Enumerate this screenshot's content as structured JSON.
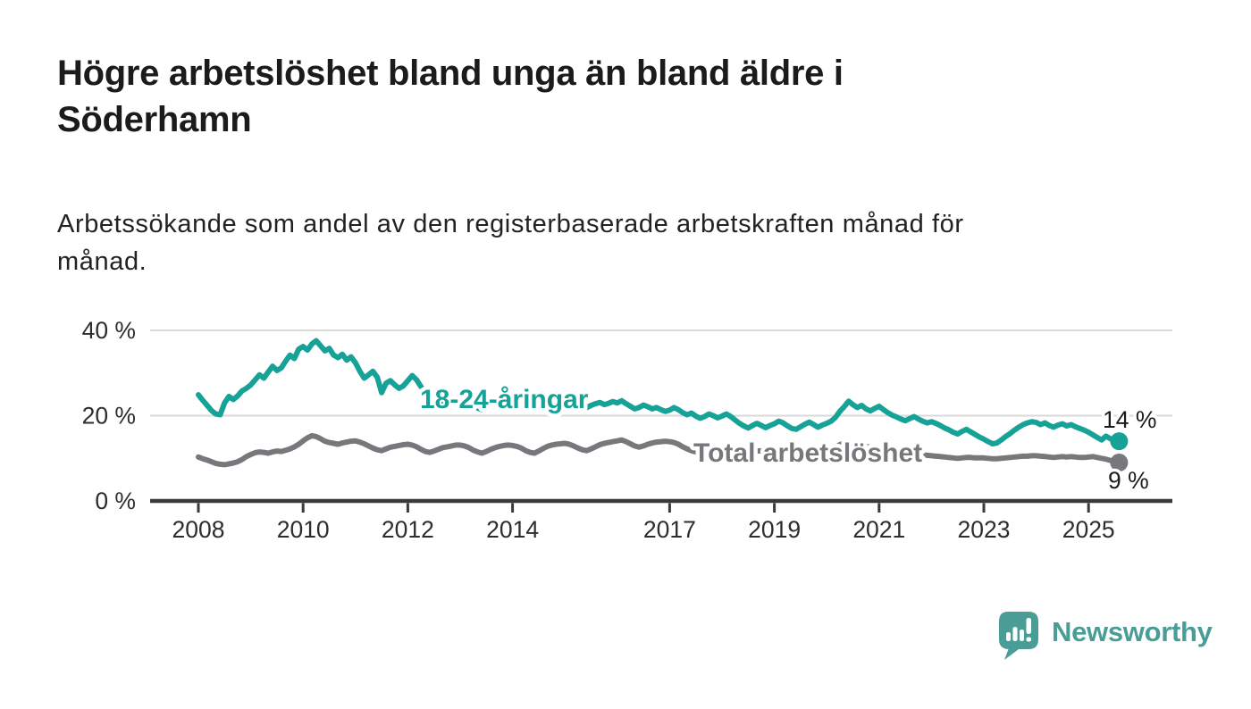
{
  "header": {
    "title": "Högre arbetslöshet bland unga än bland äldre i Söderhamn",
    "title_lines": [
      "Högre arbetslöshet bland unga än bland äldre i",
      "Söderhamn"
    ],
    "subtitle": "Arbetssökande som andel av den registerbaserade arbetskraften månad för månad.",
    "subtitle_lines": [
      "Arbetssökande som andel av den registerbaserade arbetskraften månad för",
      "månad."
    ]
  },
  "footer": {
    "brand": "Newsworthy",
    "brand_color": "#4a9d96"
  },
  "chart_data": {
    "type": "line",
    "title": "Högre arbetslöshet bland unga än bland äldre i Söderhamn",
    "subtitle": "Arbetssökande som andel av den registerbaserade arbetskraften månad för månad.",
    "xlabel": "",
    "ylabel": "",
    "frequency": "monthly",
    "start_year": 2008,
    "start_month": 1,
    "end_year": 2025,
    "end_month": 8,
    "x_ticks": [
      2008,
      2010,
      2012,
      2014,
      2017,
      2019,
      2021,
      2023,
      2025
    ],
    "y_ticks": [
      {
        "value": 0,
        "label": "0 %"
      },
      {
        "value": 20,
        "label": "20 %"
      },
      {
        "value": 40,
        "label": "40 %"
      }
    ],
    "ylim": [
      0,
      42
    ],
    "grid": "horizontal",
    "legend": "inline-labels",
    "axis_color": "#3a3a3a",
    "grid_color": "#d9d9d9",
    "tick_label_color": "#2d2d2d",
    "end_label_color": "#1a1a1a",
    "series": [
      {
        "name": "18-24-åringar",
        "color": "#16a296",
        "end_label": "14 %",
        "end_value": 14,
        "values": [
          24.9,
          23.6,
          22.4,
          21.2,
          20.4,
          20.2,
          23.0,
          24.5,
          23.8,
          24.6,
          25.8,
          26.4,
          27.2,
          28.4,
          29.6,
          28.8,
          30.2,
          31.6,
          30.6,
          31.2,
          32.8,
          34.2,
          33.4,
          35.6,
          36.2,
          35.4,
          36.8,
          37.6,
          36.4,
          35.2,
          35.8,
          34.2,
          33.6,
          34.4,
          33.0,
          33.8,
          32.4,
          30.4,
          28.8,
          29.6,
          30.4,
          29.0,
          25.4,
          27.6,
          28.2,
          27.2,
          26.4,
          27.0,
          28.2,
          29.4,
          28.4,
          26.8,
          25.6,
          21.8,
          22.6,
          23.8,
          22.8,
          23.4,
          24.2,
          23.6,
          23.2,
          24.0,
          23.4,
          22.6,
          21.8,
          21.4,
          22.2,
          23.0,
          23.6,
          23.2,
          23.9,
          24.3,
          24.0,
          24.5,
          23.8,
          23.0,
          22.4,
          21.9,
          22.6,
          23.3,
          23.8,
          24.1,
          24.4,
          24.0,
          23.6,
          24.2,
          23.7,
          22.9,
          22.3,
          21.9,
          22.4,
          22.8,
          23.1,
          22.6,
          22.9,
          23.3,
          23.0,
          23.5,
          22.8,
          22.2,
          21.6,
          21.9,
          22.5,
          22.1,
          21.6,
          21.9,
          21.4,
          21.0,
          21.3,
          21.9,
          21.4,
          20.7,
          20.2,
          20.6,
          19.9,
          19.4,
          19.8,
          20.4,
          20.0,
          19.5,
          19.9,
          20.4,
          19.8,
          19.0,
          18.2,
          17.6,
          17.1,
          17.7,
          18.2,
          17.7,
          17.2,
          17.7,
          18.1,
          18.7,
          18.3,
          17.6,
          17.0,
          16.8,
          17.4,
          18.0,
          18.5,
          17.9,
          17.3,
          17.8,
          18.2,
          18.7,
          19.6,
          21.0,
          22.1,
          23.4,
          22.6,
          21.9,
          22.4,
          21.6,
          21.1,
          21.7,
          22.2,
          21.4,
          20.7,
          20.1,
          19.7,
          19.2,
          18.8,
          19.3,
          19.8,
          19.2,
          18.7,
          18.3,
          18.6,
          18.2,
          17.7,
          17.1,
          16.7,
          16.1,
          15.7,
          16.3,
          16.8,
          16.2,
          15.6,
          15.0,
          14.5,
          13.9,
          13.4,
          13.6,
          14.3,
          15.1,
          15.8,
          16.6,
          17.3,
          17.9,
          18.3,
          18.6,
          18.4,
          17.9,
          18.3,
          17.7,
          17.3,
          17.8,
          18.1,
          17.6,
          17.9,
          17.4,
          17.0,
          16.6,
          16.1,
          15.5,
          14.9,
          14.3,
          15.2,
          14.6,
          14.2,
          14.0
        ]
      },
      {
        "name": "Total arbetslöshet",
        "color": "#78787c",
        "end_label": "9 %",
        "end_value": 9,
        "values": [
          10.3,
          9.9,
          9.6,
          9.2,
          8.8,
          8.6,
          8.5,
          8.7,
          8.9,
          9.2,
          9.7,
          10.4,
          10.9,
          11.3,
          11.5,
          11.4,
          11.2,
          11.5,
          11.7,
          11.6,
          11.9,
          12.2,
          12.7,
          13.3,
          14.1,
          14.8,
          15.3,
          15.1,
          14.6,
          14.0,
          13.7,
          13.5,
          13.3,
          13.6,
          13.8,
          14.0,
          14.1,
          13.8,
          13.4,
          12.9,
          12.4,
          12.0,
          11.8,
          12.2,
          12.6,
          12.8,
          13.0,
          13.2,
          13.3,
          13.1,
          12.7,
          12.1,
          11.6,
          11.4,
          11.7,
          12.1,
          12.5,
          12.7,
          12.9,
          13.1,
          13.1,
          12.9,
          12.5,
          11.9,
          11.5,
          11.2,
          11.6,
          12.1,
          12.5,
          12.8,
          13.0,
          13.1,
          13.0,
          12.8,
          12.4,
          11.8,
          11.4,
          11.2,
          11.7,
          12.3,
          12.8,
          13.1,
          13.3,
          13.4,
          13.5,
          13.3,
          12.9,
          12.4,
          12.0,
          11.8,
          12.2,
          12.7,
          13.2,
          13.5,
          13.7,
          13.9,
          14.1,
          14.3,
          13.9,
          13.4,
          12.9,
          12.6,
          12.9,
          13.3,
          13.6,
          13.8,
          13.9,
          14.0,
          13.9,
          13.7,
          13.3,
          12.7,
          12.2,
          11.8,
          11.5,
          11.8,
          12.1,
          12.3,
          12.4,
          12.5,
          12.4,
          12.2,
          11.9,
          11.5,
          11.1,
          10.9,
          11.1,
          11.4,
          11.7,
          11.8,
          11.9,
          12.0,
          12.0,
          11.9,
          11.6,
          11.2,
          10.9,
          10.8,
          11.0,
          11.3,
          11.6,
          11.7,
          11.8,
          12.0,
          12.1,
          12.2,
          12.6,
          13.2,
          13.6,
          13.8,
          13.5,
          13.2,
          13.0,
          12.8,
          12.6,
          12.5,
          12.4,
          12.2,
          11.9,
          11.6,
          11.3,
          11.0,
          10.8,
          10.9,
          11.0,
          10.9,
          10.8,
          10.7,
          10.6,
          10.5,
          10.4,
          10.3,
          10.2,
          10.1,
          10.0,
          10.1,
          10.2,
          10.2,
          10.1,
          10.1,
          10.1,
          10.0,
          9.9,
          9.9,
          10.0,
          10.1,
          10.2,
          10.3,
          10.4,
          10.5,
          10.5,
          10.6,
          10.6,
          10.5,
          10.4,
          10.3,
          10.2,
          10.3,
          10.4,
          10.3,
          10.4,
          10.3,
          10.2,
          10.2,
          10.3,
          10.4,
          10.2,
          10.0,
          9.8,
          9.5,
          9.2,
          9.0
        ]
      }
    ]
  }
}
